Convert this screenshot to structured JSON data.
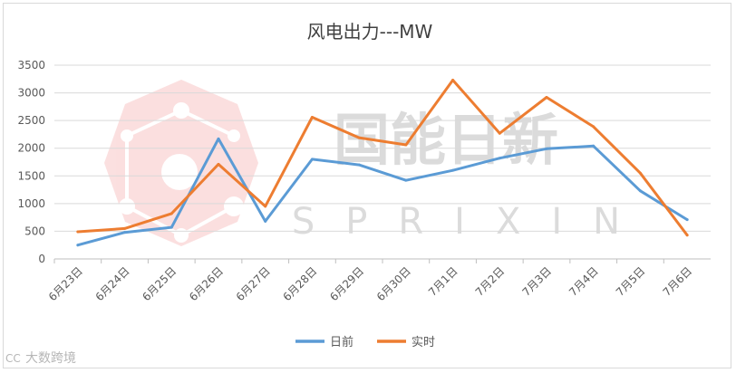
{
  "chart_data": {
    "type": "line",
    "title": "风电出力---MW",
    "categories": [
      "6月23日",
      "6月24日",
      "6月25日",
      "6月26日",
      "6月27日",
      "6月28日",
      "6月29日",
      "6月30日",
      "7月1日",
      "7月2日",
      "7月3日",
      "7月4日",
      "7月5日",
      "7月6日"
    ],
    "series": [
      {
        "name": "日前",
        "color": "#5b9bd5",
        "values": [
          250,
          480,
          570,
          2170,
          680,
          1800,
          1700,
          1420,
          1600,
          1820,
          1990,
          2040,
          1230,
          710
        ]
      },
      {
        "name": "实时",
        "color": "#ed7d31",
        "values": [
          490,
          550,
          820,
          1710,
          950,
          2560,
          2190,
          2060,
          3230,
          2270,
          2920,
          2390,
          1550,
          430
        ]
      }
    ],
    "yticks": [
      0,
      500,
      1000,
      1500,
      2000,
      2500,
      3000,
      3500
    ],
    "ylim": [
      0,
      3500
    ],
    "grid": true,
    "legend_position": "bottom"
  },
  "watermark": {
    "brand": "国能日新",
    "brand_en": "SPRIXIN",
    "corner_mark": "大数跨境",
    "corner_mark_prefix": "CC"
  }
}
